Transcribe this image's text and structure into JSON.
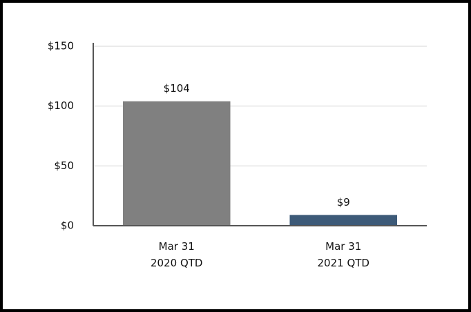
{
  "chart_data": {
    "type": "bar",
    "categories": [
      [
        "Mar 31",
        "2020 QTD"
      ],
      [
        "Mar 31",
        "2021 QTD"
      ]
    ],
    "values": [
      104,
      9
    ],
    "value_labels": [
      "$104",
      "$9"
    ],
    "colors": [
      "#808080",
      "#3d5a78"
    ],
    "ylim": [
      0,
      150
    ],
    "yticks": [
      {
        "value": 0,
        "label": "$0"
      },
      {
        "value": 50,
        "label": "$50"
      },
      {
        "value": 100,
        "label": "$100"
      },
      {
        "value": 150,
        "label": "$150"
      }
    ],
    "grid": true
  }
}
